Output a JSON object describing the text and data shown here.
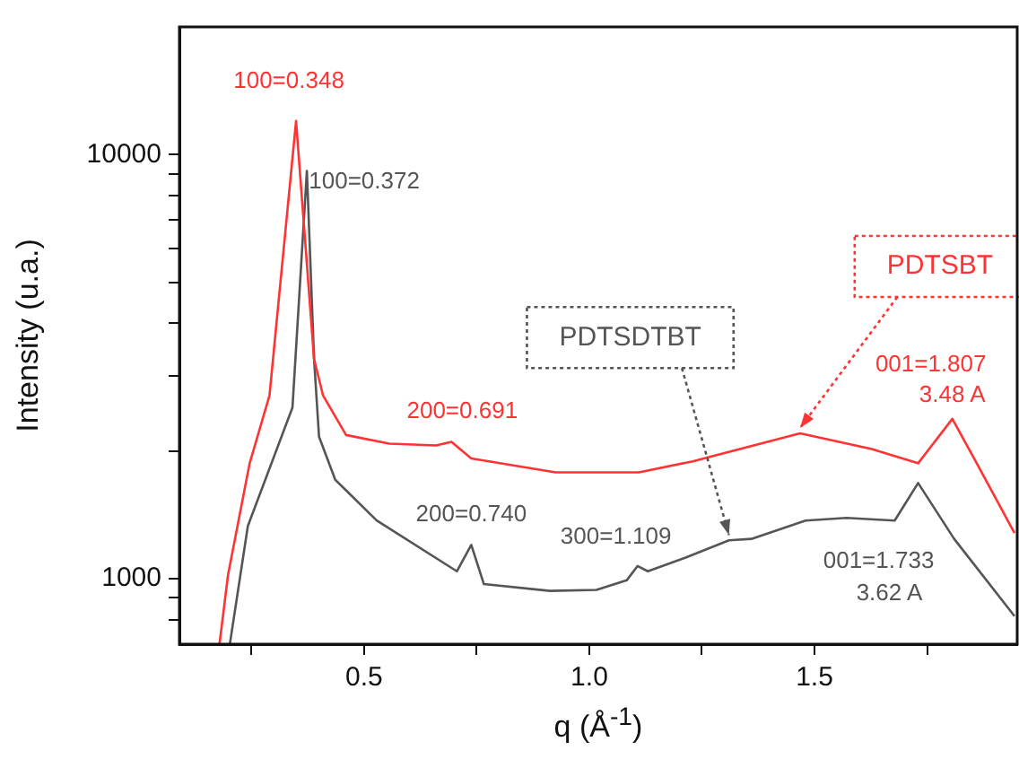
{
  "chart_data": {
    "type": "line",
    "xlabel": "q (Å$^{-1}$)",
    "ylabel": "Intensity (u.a.)",
    "log": "y",
    "grid": false,
    "legend": false,
    "marker": "none",
    "line_style": "solid",
    "xlim": [
      0.09,
      1.95
    ],
    "xticks": [
      {
        "value": 0.25,
        "label": null
      },
      {
        "value": 0.5,
        "label": "0.5"
      },
      {
        "value": 0.75,
        "label": null
      },
      {
        "value": 1.0,
        "label": "1.0"
      },
      {
        "value": 1.25,
        "label": null
      },
      {
        "value": 1.5,
        "label": "1.5"
      },
      {
        "value": 1.75,
        "label": null
      }
    ],
    "ylim": [
      700,
      20000
    ],
    "yticks": [
      {
        "value": 800,
        "label": null
      },
      {
        "value": 900,
        "label": null
      },
      1000,
      {
        "value": 2000,
        "label": null
      },
      {
        "value": 3000,
        "label": null
      },
      {
        "value": 4000,
        "label": null
      },
      {
        "value": 5000,
        "label": null
      },
      {
        "value": 6000,
        "label": null
      },
      {
        "value": 7000,
        "label": null
      },
      {
        "value": 8000,
        "label": null
      },
      {
        "value": 9000,
        "label": null
      },
      10000
    ],
    "series": [
      {
        "name": "PDTSBT",
        "color": "#ff3333",
        "x": [
          0.179,
          0.198,
          0.246,
          0.29,
          0.349,
          0.389,
          0.409,
          0.46,
          0.556,
          0.66,
          0.694,
          0.738,
          0.925,
          1.11,
          1.23,
          1.468,
          1.627,
          1.73,
          1.806,
          1.865,
          1.944
        ],
        "values": [
          700,
          1020,
          1870,
          2700,
          12000,
          3290,
          2700,
          2180,
          2080,
          2060,
          2100,
          1920,
          1780,
          1780,
          1890,
          2200,
          2020,
          1870,
          2380,
          1830,
          1280
        ]
      },
      {
        "name": "PDTSDTBT",
        "color": "#555555",
        "x": [
          0.202,
          0.242,
          0.341,
          0.373,
          0.389,
          0.4,
          0.436,
          0.528,
          0.706,
          0.738,
          0.766,
          0.913,
          1.016,
          1.083,
          1.107,
          1.13,
          1.214,
          1.31,
          1.36,
          1.48,
          1.571,
          1.678,
          1.73,
          1.81,
          1.944
        ],
        "values": [
          700,
          1330,
          2530,
          9150,
          3290,
          2160,
          1710,
          1370,
          1040,
          1200,
          970,
          935,
          940,
          990,
          1070,
          1040,
          1120,
          1230,
          1240,
          1370,
          1390,
          1370,
          1680,
          1240,
          815
        ]
      }
    ],
    "annotations": [
      {
        "text": "100=0.348",
        "x": 0.349,
        "y": 12000
      },
      {
        "text": "100=0.372",
        "x": 0.373,
        "y": 9150
      },
      {
        "text": "200=0.691",
        "x": 0.694,
        "y": 2100
      },
      {
        "text": "200=0.740",
        "x": 0.738,
        "y": 1200
      },
      {
        "text": "300=1.109",
        "x": 1.107,
        "y": 1070
      },
      {
        "text": "001=1.733",
        "x": 1.73,
        "y": 1680
      },
      "3.62 A",
      {
        "text": "001=1.807",
        "x": 1.806,
        "y": 2380
      },
      {
        "text": "3.48 A",
        "x": 1.806,
        "y": 2380
      }
    ]
  }
}
